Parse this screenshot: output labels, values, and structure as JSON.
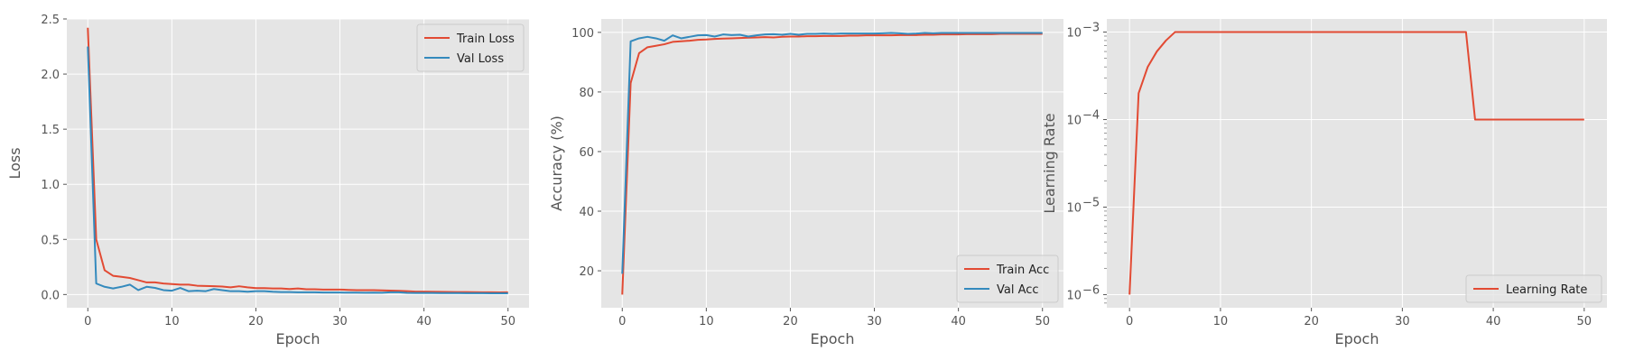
{
  "colors": {
    "train": "#E24A33",
    "val": "#348ABD",
    "panel_bg": "#E5E5E5",
    "grid": "#FFFFFF"
  },
  "chart_data": [
    {
      "type": "line",
      "xlabel": "Epoch",
      "ylabel": "Loss",
      "xlim": [
        -2.5,
        52.5
      ],
      "ylim": [
        -0.12,
        2.5
      ],
      "xticks": [
        0,
        10,
        20,
        30,
        40,
        50
      ],
      "yticks": [
        "0.0",
        "0.5",
        "1.0",
        "1.5",
        "2.0",
        "2.5"
      ],
      "grid": true,
      "legend": "top-right",
      "x": [
        0,
        1,
        2,
        3,
        4,
        5,
        6,
        7,
        8,
        9,
        10,
        11,
        12,
        13,
        14,
        15,
        16,
        17,
        18,
        19,
        20,
        21,
        22,
        23,
        24,
        25,
        26,
        27,
        28,
        29,
        30,
        31,
        32,
        33,
        34,
        35,
        36,
        37,
        38,
        39,
        40,
        41,
        42,
        43,
        44,
        45,
        46,
        47,
        48,
        49,
        50
      ],
      "series": [
        {
          "name": "Train Loss",
          "color": "#E24A33",
          "values": [
            2.42,
            0.5,
            0.22,
            0.17,
            0.16,
            0.15,
            0.13,
            0.11,
            0.11,
            0.1,
            0.095,
            0.09,
            0.09,
            0.08,
            0.078,
            0.075,
            0.072,
            0.065,
            0.075,
            0.065,
            0.058,
            0.058,
            0.055,
            0.055,
            0.05,
            0.055,
            0.048,
            0.048,
            0.045,
            0.045,
            0.045,
            0.042,
            0.04,
            0.04,
            0.04,
            0.038,
            0.036,
            0.034,
            0.03,
            0.026,
            0.026,
            0.025,
            0.024,
            0.023,
            0.022,
            0.022,
            0.021,
            0.02,
            0.02,
            0.019,
            0.02
          ]
        },
        {
          "name": "Val Loss",
          "color": "#348ABD",
          "values": [
            2.25,
            0.1,
            0.07,
            0.055,
            0.07,
            0.09,
            0.04,
            0.07,
            0.06,
            0.04,
            0.035,
            0.06,
            0.03,
            0.035,
            0.03,
            0.05,
            0.04,
            0.03,
            0.03,
            0.025,
            0.03,
            0.03,
            0.025,
            0.022,
            0.022,
            0.02,
            0.02,
            0.02,
            0.018,
            0.018,
            0.018,
            0.017,
            0.017,
            0.016,
            0.017,
            0.016,
            0.02,
            0.02,
            0.015,
            0.014,
            0.014,
            0.014,
            0.013,
            0.013,
            0.013,
            0.012,
            0.012,
            0.012,
            0.011,
            0.011,
            0.011
          ]
        }
      ]
    },
    {
      "type": "line",
      "xlabel": "Epoch",
      "ylabel": "Accuracy (%)",
      "xlim": [
        -2.5,
        52.5
      ],
      "ylim": [
        7.6,
        104.5
      ],
      "xticks": [
        0,
        10,
        20,
        30,
        40,
        50
      ],
      "yticks": [
        "20",
        "40",
        "60",
        "80",
        "100"
      ],
      "grid": true,
      "legend": "bottom-right",
      "x": [
        0,
        1,
        2,
        3,
        4,
        5,
        6,
        7,
        8,
        9,
        10,
        11,
        12,
        13,
        14,
        15,
        16,
        17,
        18,
        19,
        20,
        21,
        22,
        23,
        24,
        25,
        26,
        27,
        28,
        29,
        30,
        31,
        32,
        33,
        34,
        35,
        36,
        37,
        38,
        39,
        40,
        41,
        42,
        43,
        44,
        45,
        46,
        47,
        48,
        49,
        50
      ],
      "series": [
        {
          "name": "Train Acc",
          "color": "#E24A33",
          "values": [
            12,
            83,
            93,
            95,
            95.5,
            96,
            96.8,
            97,
            97.2,
            97.5,
            97.6,
            97.8,
            97.9,
            98,
            98.1,
            98.2,
            98.3,
            98.4,
            98.3,
            98.5,
            98.6,
            98.6,
            98.7,
            98.7,
            98.8,
            98.8,
            98.8,
            98.9,
            98.9,
            99,
            99,
            99,
            99,
            99.1,
            99.1,
            99.1,
            99.2,
            99.2,
            99.3,
            99.3,
            99.3,
            99.4,
            99.4,
            99.4,
            99.4,
            99.5,
            99.5,
            99.5,
            99.5,
            99.5,
            99.5
          ]
        },
        {
          "name": "Val Acc",
          "color": "#348ABD",
          "values": [
            19,
            97,
            98,
            98.5,
            98,
            97.2,
            99,
            98,
            98.5,
            99,
            99.1,
            98.6,
            99.3,
            99.1,
            99.2,
            98.6,
            99,
            99.3,
            99.4,
            99.2,
            99.5,
            99.2,
            99.5,
            99.5,
            99.6,
            99.5,
            99.6,
            99.6,
            99.6,
            99.6,
            99.6,
            99.7,
            99.8,
            99.7,
            99.5,
            99.6,
            99.8,
            99.7,
            99.8,
            99.8,
            99.8,
            99.8,
            99.8,
            99.8,
            99.8,
            99.8,
            99.8,
            99.8,
            99.8,
            99.8,
            99.8
          ]
        }
      ]
    },
    {
      "type": "line",
      "xlabel": "Epoch",
      "ylabel": "Learning Rate",
      "xlim": [
        -2.5,
        52.5
      ],
      "yscale": "log",
      "ylim_log10": [
        -6.15,
        -2.85
      ],
      "xticks": [
        0,
        10,
        20,
        30,
        40,
        50
      ],
      "yticks_log10": [
        -6,
        -5,
        -4,
        -3
      ],
      "yticks": [
        "10",
        "10",
        "10",
        "10"
      ],
      "ytick_exponents": [
        "−6",
        "−5",
        "−4",
        "−3"
      ],
      "grid": true,
      "legend": "bottom-right",
      "x": [
        0,
        1,
        2,
        3,
        4,
        5,
        6,
        7,
        8,
        9,
        10,
        11,
        12,
        13,
        14,
        15,
        16,
        17,
        18,
        19,
        20,
        21,
        22,
        23,
        24,
        25,
        26,
        27,
        28,
        29,
        30,
        31,
        32,
        33,
        34,
        35,
        36,
        37,
        38,
        39,
        40,
        41,
        42,
        43,
        44,
        45,
        46,
        47,
        48,
        49,
        50
      ],
      "series": [
        {
          "name": "Learning Rate",
          "color": "#E24A33",
          "values": [
            1e-06,
            0.0002,
            0.0004,
            0.0006,
            0.0008,
            0.001,
            0.001,
            0.001,
            0.001,
            0.001,
            0.001,
            0.001,
            0.001,
            0.001,
            0.001,
            0.001,
            0.001,
            0.001,
            0.001,
            0.001,
            0.001,
            0.001,
            0.001,
            0.001,
            0.001,
            0.001,
            0.001,
            0.001,
            0.001,
            0.001,
            0.001,
            0.001,
            0.001,
            0.001,
            0.001,
            0.001,
            0.001,
            0.001,
            0.0001,
            0.0001,
            0.0001,
            0.0001,
            0.0001,
            0.0001,
            0.0001,
            0.0001,
            0.0001,
            0.0001,
            0.0001,
            0.0001,
            0.0001
          ]
        }
      ]
    }
  ]
}
